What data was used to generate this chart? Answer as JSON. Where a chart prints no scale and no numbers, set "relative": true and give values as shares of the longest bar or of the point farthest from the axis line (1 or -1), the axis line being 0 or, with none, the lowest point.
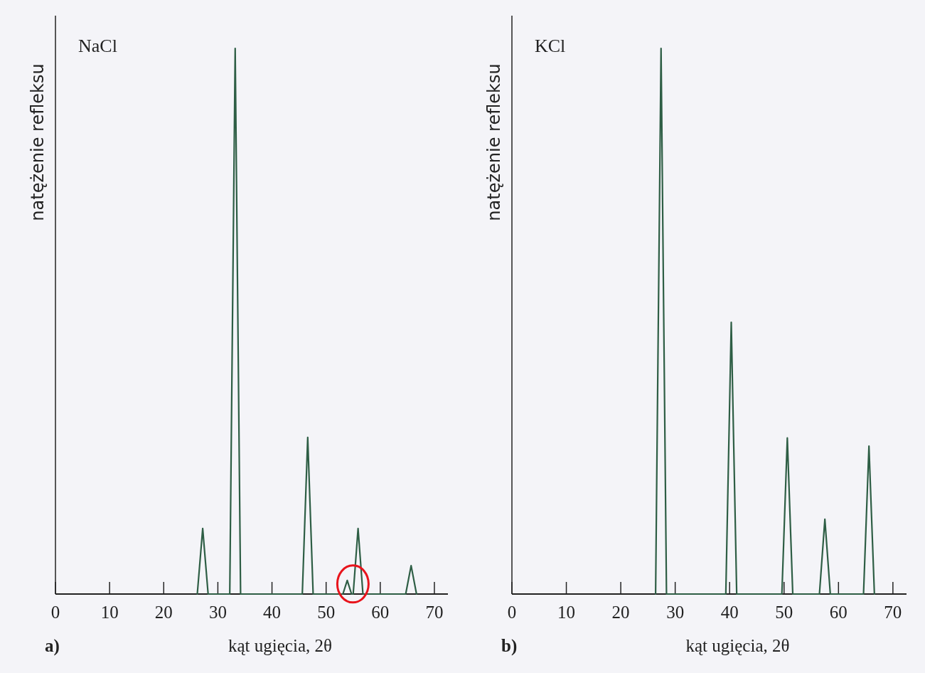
{
  "chart_data": [
    {
      "type": "line",
      "title": "NaCl",
      "xlabel": "kąt ugięcia, 2θ",
      "ylabel": "natężenie refleksu",
      "relative": true,
      "annotations": [
        "a)"
      ],
      "xlim": [
        0,
        72.5
      ],
      "xticks": [
        0,
        10,
        20,
        30,
        40,
        50,
        60,
        70
      ],
      "series": [
        {
          "color": "#2e5e45",
          "x": [
            26.2,
            27.2,
            28.2,
            32.2,
            33.2,
            34.2,
            45.6,
            46.6,
            47.6,
            53.1,
            53.9,
            54.7,
            55.0,
            55.9,
            56.8,
            64.7,
            65.7,
            66.7
          ],
          "values": [
            0,
            0.12,
            0,
            0,
            1,
            0,
            0,
            0.287,
            0,
            0,
            0.025,
            0,
            0,
            0.12,
            0,
            0,
            0.052,
            0
          ]
        }
      ]
    },
    {
      "type": "line",
      "title": "KCl",
      "xlabel": "kąt ugięcia, 2θ",
      "ylabel": "natężenie refleksu",
      "relative": true,
      "annotations": [
        "b)"
      ],
      "xlim": [
        0,
        72.5
      ],
      "xticks": [
        0,
        10,
        20,
        30,
        40,
        50,
        60,
        70
      ],
      "series": [
        {
          "color": "#2e5e45",
          "x": [
            26.4,
            27.4,
            28.4,
            39.3,
            40.3,
            41.3,
            49.6,
            50.6,
            51.6,
            56.5,
            57.5,
            58.5,
            64.6,
            65.6,
            66.6
          ],
          "values": [
            0,
            1,
            0,
            0,
            0.498,
            0,
            0,
            0.286,
            0,
            0,
            0.137,
            0,
            0,
            0.271,
            0
          ]
        }
      ]
    }
  ]
}
